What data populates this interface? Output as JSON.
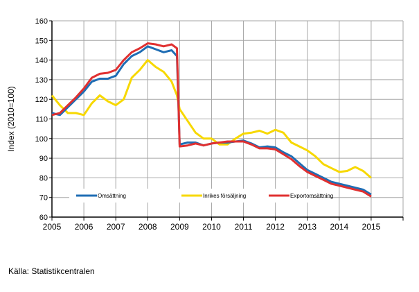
{
  "chart_data": {
    "type": "line",
    "title": "",
    "xlabel": "",
    "ylabel": "Index (2010=100)",
    "ylim": [
      60,
      160
    ],
    "yticks": [
      "60",
      "70",
      "80",
      "90",
      "100",
      "110",
      "120",
      "130",
      "140",
      "150",
      "160"
    ],
    "xlim": [
      "2005",
      "2016"
    ],
    "xticks": [
      "2005",
      "2006",
      "2007",
      "2008",
      "2009",
      "2010",
      "2011",
      "2012",
      "2013",
      "2014",
      "2015"
    ],
    "grid": true,
    "legend_placement": "bottom-inside",
    "x": [
      "2005-01",
      "2005-04",
      "2005-07",
      "2005-10",
      "2006-01",
      "2006-04",
      "2006-07",
      "2006-10",
      "2007-01",
      "2007-04",
      "2007-07",
      "2007-10",
      "2008-01",
      "2008-04",
      "2008-07",
      "2008-10",
      "2008-12",
      "2009-01",
      "2009-04",
      "2009-07",
      "2009-10",
      "2010-01",
      "2010-04",
      "2010-07",
      "2010-10",
      "2011-01",
      "2011-04",
      "2011-07",
      "2011-10",
      "2012-01",
      "2012-04",
      "2012-07",
      "2012-10",
      "2013-01",
      "2013-04",
      "2013-07",
      "2013-10",
      "2014-01",
      "2014-04",
      "2014-07",
      "2014-10",
      "2015-01"
    ],
    "series": [
      {
        "name": "Omsättning",
        "color": "#1f6db4",
        "values": [
          113,
          112,
          116,
          120,
          124,
          129,
          130.5,
          130.5,
          132,
          138,
          142,
          144,
          147,
          145.5,
          144,
          145,
          142,
          97,
          98,
          98,
          96.5,
          97.5,
          98,
          98,
          98.5,
          99,
          97.5,
          95.5,
          96,
          95.5,
          93,
          91,
          87.5,
          84,
          82,
          80,
          78,
          77,
          76,
          75,
          74,
          71.5
        ]
      },
      {
        "name": "Inrikes försäljning",
        "color": "#f7d800",
        "values": [
          122,
          117,
          113,
          113,
          112,
          118,
          122,
          119,
          117,
          120,
          131,
          135,
          140,
          136.5,
          134,
          129,
          122,
          115,
          109,
          103,
          100,
          100,
          97,
          97,
          100,
          102.5,
          103,
          104,
          102.5,
          104.5,
          103,
          98,
          96,
          94,
          91,
          87,
          85,
          83,
          83.5,
          85.5,
          83.5,
          80
        ]
      },
      {
        "name": "Exportomsättning",
        "color": "#e03030",
        "values": [
          112,
          113,
          117,
          121,
          125.5,
          131,
          133,
          133.5,
          135,
          140,
          144,
          146,
          148.5,
          148,
          147,
          148,
          146,
          96,
          96.5,
          97.5,
          96.5,
          97.5,
          98,
          98.5,
          98.5,
          98.5,
          97,
          95,
          95,
          94.5,
          92,
          89.5,
          86,
          83,
          81,
          79,
          77,
          76,
          75,
          74,
          73,
          70.5
        ]
      }
    ]
  },
  "source": "Källa: Statistikcentralen"
}
